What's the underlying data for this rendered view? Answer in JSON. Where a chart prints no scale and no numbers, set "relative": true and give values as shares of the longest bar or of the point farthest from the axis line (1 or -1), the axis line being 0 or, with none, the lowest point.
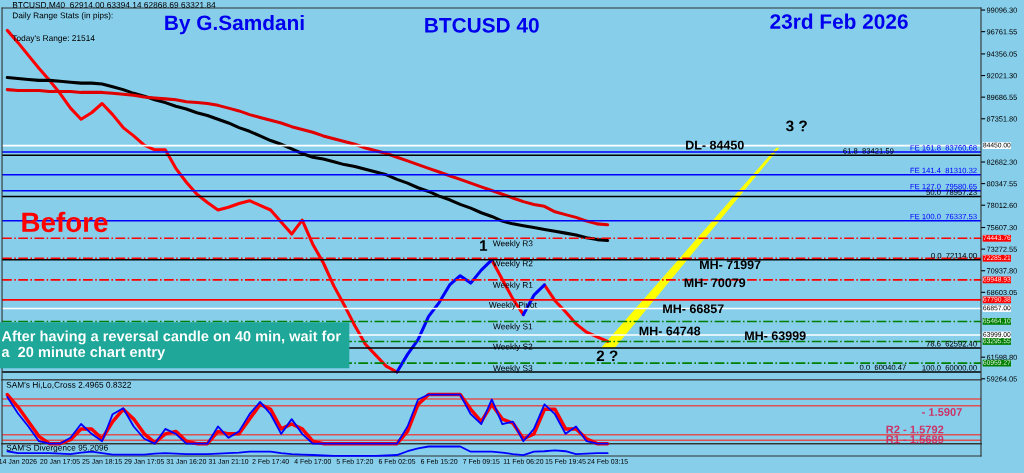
{
  "chart_data": [
    {
      "type": "line",
      "title": "BTCUSD 40",
      "subtitle": "23rd Feb 2026",
      "ylim": [
        59155,
        99312
      ],
      "tick_labels": "y",
      "categories": [
        null,
        null,
        null,
        null,
        null,
        null,
        null,
        null,
        null,
        null,
        null,
        null,
        null,
        null,
        null,
        null,
        null,
        null,
        null,
        null,
        null,
        null,
        null,
        null,
        null,
        null,
        null,
        null,
        null,
        null,
        null,
        null,
        null,
        null,
        null,
        null,
        null,
        null,
        null,
        null,
        null,
        null,
        null,
        null,
        null,
        null,
        null,
        null,
        null,
        null,
        null,
        null,
        null,
        null,
        null,
        null,
        null,
        null
      ],
      "yticks": [
        {
          "value": 99096.3,
          "label": "99096.30"
        },
        {
          "value": 96761.55,
          "label": "96761.55"
        },
        {
          "value": 94356.05,
          "label": "94356.05"
        },
        {
          "value": 92021.3,
          "label": "92021.30"
        },
        {
          "value": 89686.55,
          "label": "89686.55"
        },
        {
          "value": 87351.8,
          "label": "87351.80"
        },
        {
          "value": 82682.3,
          "label": "82682.30"
        },
        {
          "value": 80347.55,
          "label": "80347.55"
        },
        {
          "value": 78012.6,
          "label": "78012.60"
        },
        {
          "value": 75607.3,
          "label": "75607.30"
        },
        {
          "value": 73272.55,
          "label": "73272.55"
        },
        {
          "value": 70937.8,
          "label": "70937.80"
        },
        {
          "value": 68603.05,
          "label": "68603.05"
        },
        {
          "value": 61598.8,
          "label": "61598.80"
        },
        {
          "value": 59264.05,
          "label": "59264.05"
        }
      ],
      "series": [
        {
          "color": "#ff0000",
          "values": [
            96900,
            95600,
            94200,
            92800,
            91500,
            90100,
            88500,
            87300,
            88000,
            89000,
            87800,
            86400,
            85500,
            84500,
            84000,
            84000,
            82000,
            80500,
            79200,
            78300,
            77500,
            77800,
            78200,
            78500,
            78000,
            77500,
            76200,
            74900,
            76400,
            73800,
            71800,
            69300,
            67200,
            65000,
            63000,
            61800,
            60600,
            60000,
            null,
            null,
            null,
            null,
            null,
            null,
            null,
            null,
            72100,
            70000,
            67900,
            66200,
            null,
            69400,
            67700,
            66500,
            65200,
            64300,
            63800,
            63300
          ]
        },
        {
          "color": "#0000ff",
          "values": [
            null,
            null,
            null,
            null,
            null,
            null,
            null,
            null,
            null,
            null,
            null,
            null,
            null,
            null,
            null,
            null,
            null,
            null,
            null,
            null,
            null,
            null,
            null,
            null,
            null,
            null,
            null,
            null,
            null,
            null,
            null,
            null,
            null,
            null,
            null,
            null,
            null,
            60000,
            61900,
            63500,
            66000,
            67500,
            69400,
            70400,
            69600,
            71000,
            72100,
            null,
            null,
            66200,
            68300,
            69400,
            null,
            null,
            null,
            null,
            null,
            null
          ]
        },
        {
          "color": "#000000",
          "values": [
            91800,
            91700,
            91600,
            91500,
            91500,
            91400,
            91300,
            91200,
            91200,
            91100,
            90800,
            90500,
            90100,
            89800,
            89400,
            89100,
            88700,
            88400,
            88000,
            87700,
            87300,
            86900,
            86400,
            86000,
            85500,
            85000,
            84600,
            84100,
            83600,
            83200,
            83000,
            82700,
            82400,
            82200,
            81900,
            81600,
            81300,
            80800,
            80400,
            79900,
            79500,
            79000,
            78600,
            78100,
            77700,
            77200,
            76800,
            76300,
            76000,
            75800,
            75600,
            75400,
            75200,
            75000,
            74800,
            74500,
            74300,
            74200
          ]
        },
        {
          "color": "#e00000",
          "values": [
            90500,
            90400,
            90400,
            90400,
            90300,
            90300,
            90300,
            90200,
            90200,
            90200,
            90100,
            90000,
            89900,
            89700,
            89600,
            89500,
            89400,
            89200,
            89100,
            89000,
            88800,
            88500,
            88200,
            87800,
            87500,
            87200,
            86900,
            86500,
            86200,
            85900,
            85500,
            85200,
            84900,
            84600,
            84200,
            83900,
            83600,
            83200,
            82800,
            82400,
            82000,
            81600,
            81200,
            80800,
            80400,
            80000,
            79600,
            79200,
            78800,
            78400,
            78100,
            77900,
            77300,
            77000,
            76700,
            76300,
            76000,
            75900
          ]
        }
      ],
      "ref_lines": [
        {
          "axis": "y",
          "value": 84450,
          "label": "84450.00",
          "color": "#ffffff",
          "line_style": "solid"
        },
        {
          "axis": "y",
          "value": 83760.68,
          "label": "FE 161.8  83760.68",
          "color": "#0000ff",
          "line_style": "solid"
        },
        {
          "axis": "y",
          "value": 83421.59,
          "label": "61.8  83421.59",
          "color": "#000000",
          "line_style": "solid"
        },
        {
          "axis": "y",
          "value": 81310.32,
          "label": "FE 141.4  81310.32",
          "color": "#0000ff",
          "line_style": "solid"
        },
        {
          "axis": "y",
          "value": 79580.65,
          "label": "FE 127.0  79580.65",
          "color": "#0000ff",
          "line_style": "solid"
        },
        {
          "axis": "y",
          "value": 78957.23,
          "label": "50.0  78957.23",
          "color": "#000000",
          "line_style": "solid"
        },
        {
          "axis": "y",
          "value": 76337.53,
          "label": "FE 100.0  76337.53",
          "color": "#0000ff",
          "line_style": "solid"
        },
        {
          "axis": "y",
          "value": 74443.76,
          "label": "74443.76",
          "color": "#ff0000",
          "line_style": "dashdot"
        },
        {
          "axis": "y",
          "value": 72285.21,
          "label": "72285.21",
          "color": "#ff0000",
          "line_style": "dashdot"
        },
        {
          "axis": "y",
          "value": 72114.0,
          "label": "0.0  72114.00",
          "color": "#000000",
          "line_style": "solid"
        },
        {
          "axis": "y",
          "value": 69948.93,
          "label": "69948.93",
          "color": "#ff0000",
          "line_style": "dashdot"
        },
        {
          "axis": "y",
          "value": 67790.38,
          "label": "67790.38",
          "color": "#ff0000",
          "line_style": "solid"
        },
        {
          "axis": "y",
          "value": 66857,
          "label": "66857.00",
          "color": "#ffffff",
          "line_style": "solid"
        },
        {
          "axis": "y",
          "value": 65464.1,
          "label": "65464.10",
          "color": "#008000",
          "line_style": "dashdot"
        },
        {
          "axis": "y",
          "value": 63999,
          "label": "63999.00",
          "color": "#ffffff",
          "line_style": "solid"
        },
        {
          "axis": "y",
          "value": 63295.55,
          "label": "63295.55",
          "color": "#008000",
          "line_style": "dashdot"
        },
        {
          "axis": "y",
          "value": 62592.4,
          "label": "78.6  62592.40",
          "color": "#000000",
          "line_style": "solid"
        },
        {
          "axis": "y",
          "value": 60959.27,
          "label": "60959.27",
          "color": "#008000",
          "line_style": "dashdot"
        },
        {
          "axis": "y",
          "value": 60000.0,
          "label": "100.0  60000.00",
          "color": "#000000",
          "line_style": "solid"
        }
      ],
      "annotations": [
        "BTCUSD,M40  62914.00 63394.14 62868.69 63321.84",
        "Daily Range Stats (in pips):",
        "Today's Range: 21514",
        "By G.Samdani",
        "Before",
        "After having a reversal candle on 40 min, wait for a  20 minute chart entry",
        "1",
        "2 ?",
        "3 ?",
        "DL- 84450",
        "MH- 71997",
        "MH- 70079",
        "MH- 66857",
        "MH- 64748",
        "MH- 63999",
        "0.0  60040.47",
        {
          "text": "Weekly R3",
          "y": 74443.76
        },
        {
          "text": "Weekly R2",
          "y": 72285.21
        },
        {
          "text": "Weekly R1",
          "y": 69948.93
        },
        {
          "text": "Weekly Pivot",
          "y": 67790.38
        },
        {
          "text": "Weekly S1",
          "y": 65464.1
        },
        {
          "text": "Weekly S2",
          "y": 63295.55
        },
        {
          "text": "Weekly S3",
          "y": 60959.27
        }
      ]
    },
    {
      "type": "line",
      "relative": true,
      "tick_labels": false,
      "categories": [
        null,
        null,
        null,
        null,
        null,
        null,
        null,
        null,
        null,
        null,
        null,
        null,
        null,
        null,
        null,
        null,
        null,
        null,
        null,
        null,
        null,
        null,
        null,
        null,
        null,
        null,
        null,
        null,
        null,
        null,
        null,
        null,
        null,
        null,
        null,
        null,
        null,
        null,
        null,
        null,
        null,
        null,
        null,
        null,
        null,
        null,
        null,
        null,
        null,
        null,
        null,
        null,
        null,
        null,
        null,
        null,
        null,
        null
      ],
      "series": [
        {
          "color": "#0000ff",
          "values": [
            0.95,
            0.62,
            0.35,
            0.05,
            0,
            0,
            0.12,
            0.4,
            0.2,
            0.05,
            0.6,
            0.72,
            0.35,
            0.1,
            0,
            0.3,
            0.2,
            0,
            0,
            0,
            0.35,
            0.12,
            0.25,
            0.6,
            0.85,
            0.6,
            0.2,
            0.5,
            0.2,
            0,
            0,
            0,
            0,
            0,
            0,
            0,
            0,
            0,
            0.35,
            0.9,
            1,
            1,
            1,
            1,
            0.6,
            0.4,
            0.9,
            0.4,
            0.45,
            0.05,
            0.3,
            0.8,
            0.6,
            0.2,
            0.35,
            0.05,
            0,
            0
          ]
        },
        {
          "color": "#ff0000",
          "values": [
            1,
            0.75,
            0.45,
            0.15,
            0,
            0,
            0.08,
            0.3,
            0.3,
            0.1,
            0.45,
            0.7,
            0.5,
            0.2,
            0.02,
            0.2,
            0.25,
            0.05,
            0,
            0,
            0.25,
            0.2,
            0.2,
            0.5,
            0.8,
            0.7,
            0.3,
            0.4,
            0.3,
            0.05,
            0,
            0,
            0,
            0,
            0,
            0,
            0,
            0,
            0.25,
            0.8,
            1,
            1,
            1,
            1,
            0.7,
            0.45,
            0.8,
            0.5,
            0.42,
            0.1,
            0.2,
            0.7,
            0.7,
            0.3,
            0.3,
            0.1,
            0,
            0
          ]
        }
      ],
      "ref_lines": [
        {
          "axis": "y",
          "value": 0.91,
          "color": "#e05050",
          "line_style": "solid"
        },
        {
          "axis": "y",
          "value": 0.77,
          "color": "#e05050",
          "line_style": "solid"
        },
        {
          "axis": "y",
          "value": 0.18,
          "color": "#e05050",
          "line_style": "solid"
        },
        {
          "axis": "y",
          "value": 0.07,
          "color": "#e05050",
          "line_style": "solid"
        }
      ],
      "annotations": [
        "SAM's Hi,Lo,Cross 2.4965 0.8322",
        "- 1.5907",
        "R2 - 1.5792",
        "R1 - 1.5689"
      ]
    },
    {
      "type": "line",
      "relative": true,
      "categories": [
        null,
        "14 Jan 2026",
        null,
        null,
        null,
        "20 Jan 17:05",
        null,
        null,
        null,
        "25 Jan 18:15",
        null,
        null,
        null,
        "29 Jan 17:05",
        null,
        null,
        null,
        "31 Jan 16:20",
        null,
        null,
        null,
        "31 Jan 21:10",
        null,
        null,
        null,
        "2 Feb 17:40",
        null,
        null,
        null,
        "4 Feb 17:00",
        null,
        null,
        null,
        "5 Feb 17:20",
        null,
        null,
        null,
        "6 Feb 02:05",
        null,
        null,
        null,
        "6 Feb 15:20",
        null,
        null,
        null,
        "7 Feb 09:15",
        null,
        null,
        null,
        "11 Feb 06:20",
        null,
        null,
        null,
        "15 Feb 19:45",
        null,
        null,
        null,
        "24 Feb 03:15"
      ],
      "series": [
        {
          "color": "#0000ff",
          "values": [
            0.5,
            0.3,
            0.3,
            0.3,
            0.3,
            0.25,
            0.2,
            0.35,
            0.45,
            0.3,
            0.15,
            0.15,
            0.15,
            0.15,
            0.25,
            0.3,
            0.25,
            0.2,
            0.2,
            0.2,
            0.25,
            0.3,
            0.35,
            0.45,
            0.45,
            0.45,
            0.3,
            0.2,
            0.15,
            0.1,
            0.05,
            0,
            0,
            0,
            0,
            0.02,
            0.05,
            0.1,
            0.5,
            0.8,
            1,
            1,
            1,
            1,
            0.45,
            0.45,
            0.45,
            0.35,
            0.2,
            0.1,
            0.45,
            0.5,
            0.6,
            0.5,
            0.2,
            0.25,
            0.3,
            0.3
          ]
        }
      ],
      "annotations": [
        "SAM'S Divergence 95.2096"
      ]
    }
  ]
}
